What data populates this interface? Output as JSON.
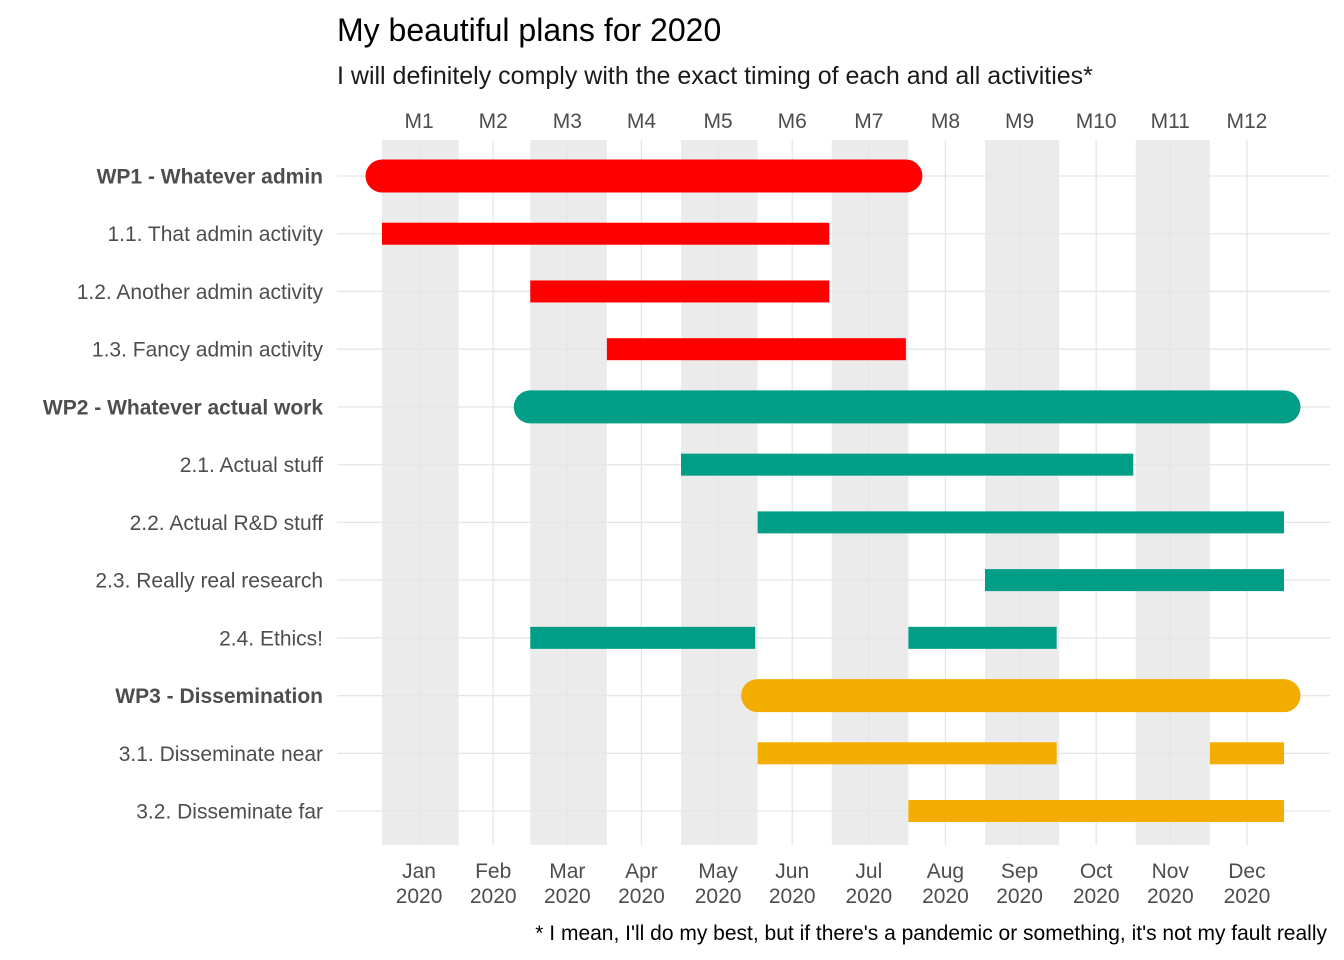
{
  "chart_data": {
    "type": "gantt",
    "title": "My beautiful plans for 2020",
    "subtitle": "I will definitely comply with the exact timing of each and all activities*",
    "caption": "* I mean, I'll do my best, but if there's a pandemic or something, it's not my fault really",
    "x_range": [
      "2020-01-01",
      "2020-12-31"
    ],
    "grid": true,
    "colors": {
      "WP1": "#ff0000",
      "WP2": "#009e87",
      "WP3": "#f2ad00",
      "band": "#ebebeb",
      "grid": "#e6e6e6"
    },
    "shaded_months": [
      1,
      3,
      5,
      7,
      9,
      11
    ],
    "top_axis": {
      "labels": [
        "M1",
        "M2",
        "M3",
        "M4",
        "M5",
        "M6",
        "M7",
        "M8",
        "M9",
        "M10",
        "M11",
        "M12"
      ],
      "dates": [
        "2020-01-16",
        "2020-02-15",
        "2020-03-16",
        "2020-04-15",
        "2020-05-16",
        "2020-06-15",
        "2020-07-16",
        "2020-08-16",
        "2020-09-15",
        "2020-10-16",
        "2020-11-15",
        "2020-12-16"
      ]
    },
    "bottom_axis": {
      "labels": [
        [
          "Jan",
          "2020"
        ],
        [
          "Feb",
          "2020"
        ],
        [
          "Mar",
          "2020"
        ],
        [
          "Apr",
          "2020"
        ],
        [
          "May",
          "2020"
        ],
        [
          "Jun",
          "2020"
        ],
        [
          "Jul",
          "2020"
        ],
        [
          "Aug",
          "2020"
        ],
        [
          "Sep",
          "2020"
        ],
        [
          "Oct",
          "2020"
        ],
        [
          "Nov",
          "2020"
        ],
        [
          "Dec",
          "2020"
        ]
      ],
      "dates": [
        "2020-01-16",
        "2020-02-15",
        "2020-03-16",
        "2020-04-15",
        "2020-05-16",
        "2020-06-15",
        "2020-07-16",
        "2020-08-16",
        "2020-09-15",
        "2020-10-16",
        "2020-11-15",
        "2020-12-16"
      ]
    },
    "rows": [
      {
        "label": "WP1 - Whatever admin",
        "wp": "WP1",
        "is_wp": true,
        "segments": [
          [
            "2020-01-01",
            "2020-07-31"
          ]
        ]
      },
      {
        "label": "1.1. That admin activity",
        "wp": "WP1",
        "is_wp": false,
        "segments": [
          [
            "2020-01-01",
            "2020-06-30"
          ]
        ]
      },
      {
        "label": "1.2. Another admin activity",
        "wp": "WP1",
        "is_wp": false,
        "segments": [
          [
            "2020-03-01",
            "2020-06-30"
          ]
        ]
      },
      {
        "label": "1.3. Fancy admin activity",
        "wp": "WP1",
        "is_wp": false,
        "segments": [
          [
            "2020-04-01",
            "2020-07-31"
          ]
        ]
      },
      {
        "label": "WP2 - Whatever actual work",
        "wp": "WP2",
        "is_wp": true,
        "segments": [
          [
            "2020-03-01",
            "2020-12-31"
          ]
        ]
      },
      {
        "label": "2.1. Actual stuff",
        "wp": "WP2",
        "is_wp": false,
        "segments": [
          [
            "2020-05-01",
            "2020-10-31"
          ]
        ]
      },
      {
        "label": "2.2. Actual R&D stuff",
        "wp": "WP2",
        "is_wp": false,
        "segments": [
          [
            "2020-06-01",
            "2020-12-31"
          ]
        ]
      },
      {
        "label": "2.3. Really real research",
        "wp": "WP2",
        "is_wp": false,
        "segments": [
          [
            "2020-09-01",
            "2020-12-31"
          ]
        ]
      },
      {
        "label": "2.4. Ethics!",
        "wp": "WP2",
        "is_wp": false,
        "segments": [
          [
            "2020-03-01",
            "2020-05-31"
          ],
          [
            "2020-08-01",
            "2020-09-30"
          ]
        ]
      },
      {
        "label": "WP3 - Dissemination",
        "wp": "WP3",
        "is_wp": true,
        "segments": [
          [
            "2020-06-01",
            "2020-12-31"
          ]
        ]
      },
      {
        "label": "3.1. Disseminate near",
        "wp": "WP3",
        "is_wp": false,
        "segments": [
          [
            "2020-06-01",
            "2020-09-30"
          ],
          [
            "2020-12-01",
            "2020-12-31"
          ]
        ]
      },
      {
        "label": "3.2. Disseminate far",
        "wp": "WP3",
        "is_wp": false,
        "segments": [
          [
            "2020-08-01",
            "2020-12-31"
          ]
        ]
      }
    ]
  }
}
